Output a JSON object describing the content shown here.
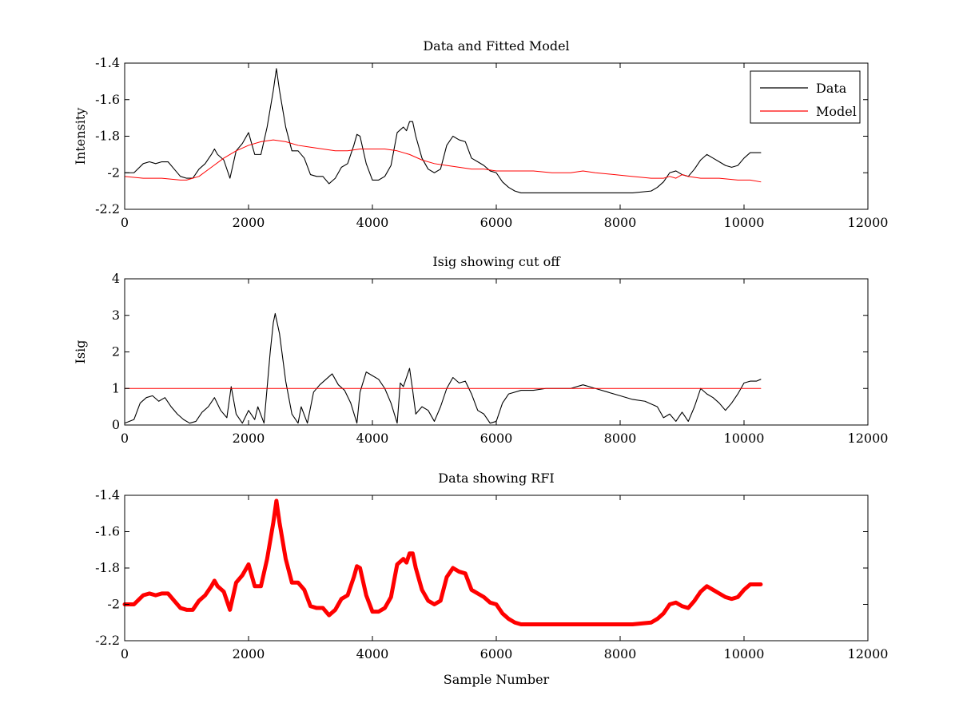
{
  "chart_data": [
    {
      "type": "line",
      "title": "Data and Fitted Model",
      "xlabel": "",
      "ylabel": "Intensity",
      "xlim": [
        0,
        12000
      ],
      "ylim": [
        -2.2,
        -1.4
      ],
      "xticks": [
        0,
        2000,
        4000,
        6000,
        8000,
        10000,
        12000
      ],
      "yticks": [
        -1.4,
        -1.6,
        -1.8,
        -2,
        -2.2
      ],
      "grid": false,
      "legend": "top-right",
      "series": [
        {
          "name": "Data",
          "color": "#000000",
          "x": [
            0,
            150,
            300,
            400,
            500,
            600,
            700,
            800,
            900,
            1000,
            1100,
            1200,
            1300,
            1400,
            1450,
            1500,
            1600,
            1700,
            1800,
            1900,
            2000,
            2100,
            2200,
            2300,
            2400,
            2450,
            2500,
            2600,
            2700,
            2800,
            2900,
            3000,
            3100,
            3200,
            3300,
            3400,
            3500,
            3600,
            3700,
            3750,
            3800,
            3900,
            4000,
            4100,
            4200,
            4300,
            4400,
            4500,
            4550,
            4600,
            4650,
            4700,
            4800,
            4900,
            5000,
            5100,
            5200,
            5300,
            5400,
            5500,
            5600,
            5700,
            5800,
            5900,
            6000,
            6100,
            6200,
            6300,
            6400,
            6500,
            6700,
            7000,
            7300,
            7600,
            7900,
            8200,
            8500,
            8600,
            8700,
            8800,
            8900,
            9000,
            9100,
            9200,
            9300,
            9400,
            9500,
            9600,
            9700,
            9800,
            9900,
            10000,
            10100,
            10200,
            10270
          ],
          "y": [
            -2.0,
            -2.0,
            -1.95,
            -1.94,
            -1.95,
            -1.94,
            -1.94,
            -1.98,
            -2.02,
            -2.03,
            -2.03,
            -1.98,
            -1.95,
            -1.9,
            -1.87,
            -1.9,
            -1.93,
            -2.03,
            -1.88,
            -1.84,
            -1.78,
            -1.9,
            -1.9,
            -1.75,
            -1.55,
            -1.43,
            -1.55,
            -1.75,
            -1.88,
            -1.88,
            -1.92,
            -2.01,
            -2.02,
            -2.02,
            -2.06,
            -2.03,
            -1.97,
            -1.95,
            -1.85,
            -1.79,
            -1.8,
            -1.95,
            -2.04,
            -2.04,
            -2.02,
            -1.96,
            -1.78,
            -1.75,
            -1.77,
            -1.72,
            -1.72,
            -1.8,
            -1.92,
            -1.98,
            -2.0,
            -1.98,
            -1.85,
            -1.8,
            -1.82,
            -1.83,
            -1.92,
            -1.94,
            -1.96,
            -1.99,
            -2.0,
            -2.05,
            -2.08,
            -2.1,
            -2.11,
            -2.11,
            -2.11,
            -2.11,
            -2.11,
            -2.11,
            -2.11,
            -2.11,
            -2.1,
            -2.08,
            -2.05,
            -2.0,
            -1.99,
            -2.01,
            -2.02,
            -1.98,
            -1.93,
            -1.9,
            -1.92,
            -1.94,
            -1.96,
            -1.97,
            -1.96,
            -1.92,
            -1.89,
            -1.89,
            -1.89
          ]
        },
        {
          "name": "Model",
          "color": "#ff0000",
          "x": [
            0,
            300,
            600,
            900,
            1000,
            1200,
            1400,
            1600,
            1800,
            2000,
            2200,
            2400,
            2600,
            2800,
            3000,
            3200,
            3400,
            3600,
            3800,
            4000,
            4200,
            4400,
            4600,
            4800,
            5000,
            5200,
            5400,
            5600,
            5800,
            6000,
            6300,
            6600,
            6900,
            7200,
            7400,
            7600,
            7900,
            8200,
            8500,
            8700,
            8800,
            8900,
            9000,
            9100,
            9300,
            9600,
            9900,
            10100,
            10270
          ],
          "y": [
            -2.02,
            -2.03,
            -2.03,
            -2.04,
            -2.04,
            -2.02,
            -1.97,
            -1.92,
            -1.88,
            -1.85,
            -1.83,
            -1.82,
            -1.83,
            -1.85,
            -1.86,
            -1.87,
            -1.88,
            -1.88,
            -1.87,
            -1.87,
            -1.87,
            -1.88,
            -1.9,
            -1.93,
            -1.95,
            -1.96,
            -1.97,
            -1.98,
            -1.98,
            -1.99,
            -1.99,
            -1.99,
            -2.0,
            -2.0,
            -1.99,
            -2.0,
            -2.01,
            -2.02,
            -2.03,
            -2.03,
            -2.02,
            -2.03,
            -2.01,
            -2.02,
            -2.03,
            -2.03,
            -2.04,
            -2.04,
            -2.05
          ]
        }
      ]
    },
    {
      "type": "line",
      "title": "Isig showing cut off",
      "xlabel": "",
      "ylabel": "Isig",
      "xlim": [
        0,
        12000
      ],
      "ylim": [
        0,
        4
      ],
      "xticks": [
        0,
        2000,
        4000,
        6000,
        8000,
        10000,
        12000
      ],
      "yticks": [
        0,
        1,
        2,
        3,
        4
      ],
      "grid": false,
      "series": [
        {
          "color": "#000000",
          "x": [
            0,
            150,
            250,
            350,
            450,
            550,
            650,
            750,
            850,
            950,
            1050,
            1150,
            1250,
            1350,
            1450,
            1550,
            1650,
            1720,
            1800,
            1900,
            2000,
            2100,
            2150,
            2250,
            2350,
            2400,
            2430,
            2500,
            2600,
            2700,
            2800,
            2850,
            2950,
            3050,
            3150,
            3250,
            3350,
            3450,
            3550,
            3650,
            3750,
            3800,
            3900,
            4000,
            4100,
            4200,
            4300,
            4400,
            4450,
            4500,
            4600,
            4650,
            4700,
            4800,
            4900,
            5000,
            5100,
            5200,
            5300,
            5400,
            5500,
            5600,
            5700,
            5800,
            5900,
            6000,
            6100,
            6200,
            6400,
            6600,
            6800,
            7000,
            7200,
            7400,
            7600,
            7800,
            8000,
            8200,
            8400,
            8600,
            8700,
            8800,
            8900,
            9000,
            9100,
            9200,
            9300,
            9400,
            9500,
            9600,
            9700,
            9800,
            9900,
            10000,
            10100,
            10200,
            10270
          ],
          "y": [
            0.05,
            0.15,
            0.6,
            0.75,
            0.8,
            0.65,
            0.75,
            0.5,
            0.3,
            0.15,
            0.05,
            0.1,
            0.35,
            0.5,
            0.75,
            0.4,
            0.2,
            1.05,
            0.3,
            0.05,
            0.4,
            0.15,
            0.5,
            0.05,
            2.0,
            2.8,
            3.05,
            2.5,
            1.2,
            0.3,
            0.05,
            0.5,
            0.05,
            0.9,
            1.1,
            1.25,
            1.4,
            1.1,
            0.95,
            0.6,
            0.05,
            0.9,
            1.45,
            1.35,
            1.25,
            1.0,
            0.6,
            0.05,
            1.15,
            1.05,
            1.55,
            0.95,
            0.3,
            0.5,
            0.4,
            0.1,
            0.5,
            1.0,
            1.3,
            1.15,
            1.2,
            0.85,
            0.4,
            0.3,
            0.05,
            0.1,
            0.6,
            0.85,
            0.95,
            0.95,
            1.0,
            1.0,
            1.0,
            1.1,
            1.0,
            0.9,
            0.8,
            0.7,
            0.65,
            0.5,
            0.2,
            0.3,
            0.1,
            0.35,
            0.1,
            0.5,
            1.0,
            0.85,
            0.75,
            0.6,
            0.4,
            0.6,
            0.85,
            1.15,
            1.2,
            1.2,
            1.25
          ]
        },
        {
          "color": "#ff0000",
          "x": [
            0,
            10270
          ],
          "y": [
            1,
            1
          ]
        }
      ]
    },
    {
      "type": "line",
      "title": "Data showing RFI",
      "xlabel": "Sample Number",
      "ylabel": "",
      "xlim": [
        0,
        12000
      ],
      "ylim": [
        -2.2,
        -1.4
      ],
      "xticks": [
        0,
        2000,
        4000,
        6000,
        8000,
        10000,
        12000
      ],
      "yticks": [
        -1.4,
        -1.6,
        -1.8,
        -2,
        -2.2
      ],
      "grid": false,
      "series": [
        {
          "color": "#ff0000",
          "x": [
            0,
            150,
            300,
            400,
            500,
            600,
            700,
            800,
            900,
            1000,
            1100,
            1200,
            1300,
            1400,
            1450,
            1500,
            1600,
            1700,
            1800,
            1900,
            2000,
            2100,
            2200,
            2300,
            2400,
            2450,
            2500,
            2600,
            2700,
            2800,
            2900,
            3000,
            3100,
            3200,
            3300,
            3400,
            3500,
            3600,
            3700,
            3750,
            3800,
            3900,
            4000,
            4100,
            4200,
            4300,
            4400,
            4500,
            4550,
            4600,
            4650,
            4700,
            4800,
            4900,
            5000,
            5100,
            5200,
            5300,
            5400,
            5500,
            5600,
            5700,
            5800,
            5900,
            6000,
            6100,
            6200,
            6300,
            6400,
            6500,
            6700,
            7000,
            7300,
            7600,
            7900,
            8200,
            8500,
            8600,
            8700,
            8800,
            8900,
            9000,
            9100,
            9200,
            9300,
            9400,
            9500,
            9600,
            9700,
            9800,
            9900,
            10000,
            10100,
            10200,
            10270
          ],
          "y": [
            -2.0,
            -2.0,
            -1.95,
            -1.94,
            -1.95,
            -1.94,
            -1.94,
            -1.98,
            -2.02,
            -2.03,
            -2.03,
            -1.98,
            -1.95,
            -1.9,
            -1.87,
            -1.9,
            -1.93,
            -2.03,
            -1.88,
            -1.84,
            -1.78,
            -1.9,
            -1.9,
            -1.75,
            -1.55,
            -1.43,
            -1.55,
            -1.75,
            -1.88,
            -1.88,
            -1.92,
            -2.01,
            -2.02,
            -2.02,
            -2.06,
            -2.03,
            -1.97,
            -1.95,
            -1.85,
            -1.79,
            -1.8,
            -1.95,
            -2.04,
            -2.04,
            -2.02,
            -1.96,
            -1.78,
            -1.75,
            -1.77,
            -1.72,
            -1.72,
            -1.8,
            -1.92,
            -1.98,
            -2.0,
            -1.98,
            -1.85,
            -1.8,
            -1.82,
            -1.83,
            -1.92,
            -1.94,
            -1.96,
            -1.99,
            -2.0,
            -2.05,
            -2.08,
            -2.1,
            -2.11,
            -2.11,
            -2.11,
            -2.11,
            -2.11,
            -2.11,
            -2.11,
            -2.11,
            -2.1,
            -2.08,
            -2.05,
            -2.0,
            -1.99,
            -2.01,
            -2.02,
            -1.98,
            -1.93,
            -1.9,
            -1.92,
            -1.94,
            -1.96,
            -1.97,
            -1.96,
            -1.92,
            -1.89,
            -1.89,
            -1.89
          ]
        }
      ]
    }
  ]
}
